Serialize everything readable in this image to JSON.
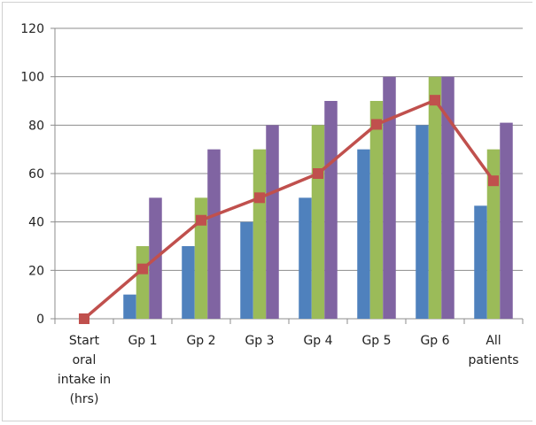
{
  "chart_data": {
    "type": "bar",
    "title": "",
    "xlabel": "",
    "ylabel": "",
    "ylim": [
      0,
      120
    ],
    "yticks": [
      0,
      20,
      40,
      60,
      80,
      100,
      120
    ],
    "grid": true,
    "legend": "none",
    "categories": [
      [
        "Start",
        "oral",
        "intake in",
        "(hrs)"
      ],
      [
        "Gp 1"
      ],
      [
        "Gp 2"
      ],
      [
        "Gp 3"
      ],
      [
        "Gp 4"
      ],
      [
        "Gp 5"
      ],
      [
        "Gp 6"
      ],
      [
        "All",
        "patients"
      ]
    ],
    "series": [
      {
        "type": "bar",
        "color": "#4f81bd",
        "values": [
          null,
          10,
          30,
          40,
          50,
          70,
          80,
          46.7
        ]
      },
      {
        "type": "bar",
        "color": "#9bbb59",
        "values": [
          null,
          30,
          50,
          70,
          80,
          90,
          100,
          70
        ]
      },
      {
        "type": "bar",
        "color": "#8064a2",
        "values": [
          null,
          50,
          70,
          80,
          90,
          100,
          100,
          81
        ]
      },
      {
        "type": "line",
        "color": "#c0504d",
        "marker": "square",
        "values": [
          0,
          20.6,
          40.7,
          50,
          60,
          80.3,
          90.3,
          57
        ]
      }
    ]
  }
}
